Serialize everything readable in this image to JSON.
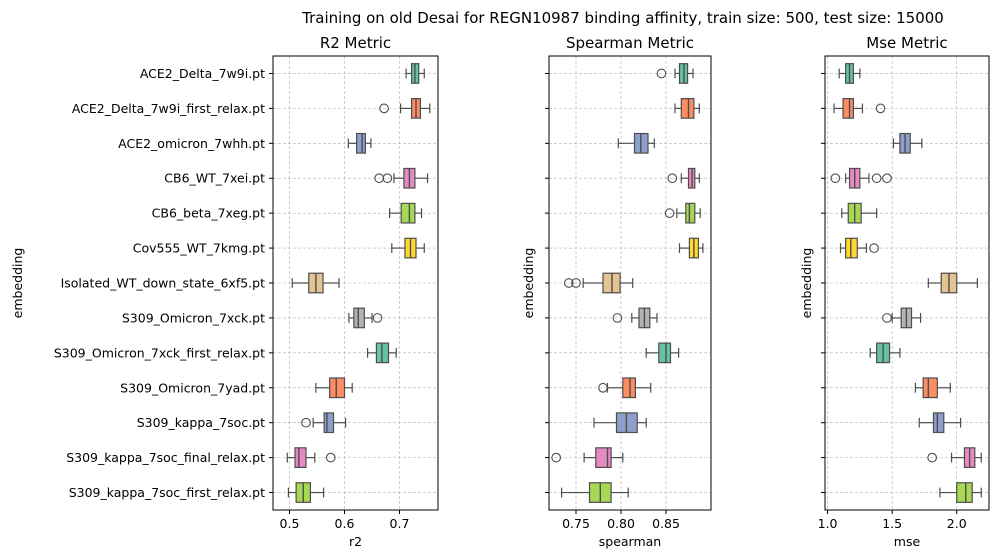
{
  "suptitle": "Training on old Desai for REGN10987 binding affinity, train size: 500, test size: 15000",
  "palette": [
    "#66c2a5",
    "#fc8d62",
    "#8da0cb",
    "#e78ac3",
    "#a6d854",
    "#ffd92f",
    "#e5c494",
    "#b3b3b3",
    "#66c2a5",
    "#fc8d62",
    "#8da0cb",
    "#e78ac3",
    "#a6d854"
  ],
  "chart_data": [
    {
      "type": "box",
      "title": "R2 Metric",
      "xlabel": "r2",
      "ylabel": "embedding",
      "xlim": [
        0.47,
        0.77
      ],
      "xticks": [
        0.5,
        0.6,
        0.7
      ],
      "xtick_labels": [
        "0.5",
        "0.6",
        "0.7"
      ],
      "grid": true,
      "categories": [
        "ACE2_Delta_7w9i.pt",
        "ACE2_Delta_7w9i_first_relax.pt",
        "ACE2_omicron_7whh.pt",
        "CB6_WT_7xei.pt",
        "CB6_beta_7xeg.pt",
        "Cov555_WT_7kmg.pt",
        "Isolated_WT_down_state_6xf5.pt",
        "S309_Omicron_7xck.pt",
        "S309_Omicron_7xck_first_relax.pt",
        "S309_Omicron_7yad.pt",
        "S309_kappa_7soc.pt",
        "S309_kappa_7soc_final_relax.pt",
        "S309_kappa_7soc_first_relax.pt"
      ],
      "boxes": [
        {
          "whislo": 0.712,
          "q1": 0.722,
          "med": 0.728,
          "q3": 0.735,
          "whishi": 0.745,
          "fliers": []
        },
        {
          "whislo": 0.702,
          "q1": 0.722,
          "med": 0.73,
          "q3": 0.738,
          "whishi": 0.755,
          "fliers": [
            0.672
          ]
        },
        {
          "whislo": 0.607,
          "q1": 0.622,
          "med": 0.632,
          "q3": 0.638,
          "whishi": 0.648,
          "fliers": []
        },
        {
          "whislo": 0.69,
          "q1": 0.708,
          "med": 0.718,
          "q3": 0.728,
          "whishi": 0.751,
          "fliers": [
            0.663,
            0.678
          ]
        },
        {
          "whislo": 0.682,
          "q1": 0.703,
          "med": 0.718,
          "q3": 0.728,
          "whishi": 0.74,
          "fliers": []
        },
        {
          "whislo": 0.686,
          "q1": 0.71,
          "med": 0.72,
          "q3": 0.73,
          "whishi": 0.745,
          "fliers": []
        },
        {
          "whislo": 0.505,
          "q1": 0.535,
          "med": 0.548,
          "q3": 0.561,
          "whishi": 0.59,
          "fliers": []
        },
        {
          "whislo": 0.608,
          "q1": 0.617,
          "med": 0.625,
          "q3": 0.636,
          "whishi": 0.65,
          "fliers": [
            0.66
          ]
        },
        {
          "whislo": 0.642,
          "q1": 0.658,
          "med": 0.668,
          "q3": 0.68,
          "whishi": 0.694,
          "fliers": []
        },
        {
          "whislo": 0.548,
          "q1": 0.573,
          "med": 0.585,
          "q3": 0.6,
          "whishi": 0.614,
          "fliers": []
        },
        {
          "whislo": 0.543,
          "q1": 0.563,
          "med": 0.568,
          "q3": 0.58,
          "whishi": 0.602,
          "fliers": [
            0.53
          ]
        },
        {
          "whislo": 0.496,
          "q1": 0.51,
          "med": 0.517,
          "q3": 0.53,
          "whishi": 0.546,
          "fliers": [
            0.575
          ]
        },
        {
          "whislo": 0.498,
          "q1": 0.512,
          "med": 0.525,
          "q3": 0.538,
          "whishi": 0.562,
          "fliers": []
        }
      ]
    },
    {
      "type": "box",
      "title": "Spearman Metric",
      "xlabel": "spearman",
      "ylabel": "embedding",
      "xlim": [
        0.72,
        0.9
      ],
      "xticks": [
        0.75,
        0.8,
        0.85
      ],
      "xtick_labels": [
        "0.75",
        "0.80",
        "0.85"
      ],
      "grid": true,
      "categories": [
        "ACE2_Delta_7w9i.pt",
        "ACE2_Delta_7w9i_first_relax.pt",
        "ACE2_omicron_7whh.pt",
        "CB6_WT_7xei.pt",
        "CB6_beta_7xeg.pt",
        "Cov555_WT_7kmg.pt",
        "Isolated_WT_down_state_6xf5.pt",
        "S309_Omicron_7xck.pt",
        "S309_Omicron_7xck_first_relax.pt",
        "S309_Omicron_7yad.pt",
        "S309_kappa_7soc.pt",
        "S309_kappa_7soc_final_relax.pt",
        "S309_kappa_7soc_first_relax.pt"
      ],
      "boxes": [
        {
          "whislo": 0.86,
          "q1": 0.865,
          "med": 0.87,
          "q3": 0.874,
          "whishi": 0.88,
          "fliers": [
            0.845
          ]
        },
        {
          "whislo": 0.86,
          "q1": 0.867,
          "med": 0.875,
          "q3": 0.881,
          "whishi": 0.887,
          "fliers": []
        },
        {
          "whislo": 0.797,
          "q1": 0.815,
          "med": 0.822,
          "q3": 0.83,
          "whishi": 0.837,
          "fliers": []
        },
        {
          "whislo": 0.867,
          "q1": 0.875,
          "med": 0.879,
          "q3": 0.882,
          "whishi": 0.887,
          "fliers": [
            0.857
          ]
        },
        {
          "whislo": 0.862,
          "q1": 0.872,
          "med": 0.876,
          "q3": 0.882,
          "whishi": 0.888,
          "fliers": [
            0.854
          ]
        },
        {
          "whislo": 0.865,
          "q1": 0.876,
          "med": 0.881,
          "q3": 0.886,
          "whishi": 0.891,
          "fliers": []
        },
        {
          "whislo": 0.758,
          "q1": 0.78,
          "med": 0.79,
          "q3": 0.799,
          "whishi": 0.813,
          "fliers": [
            0.742,
            0.75
          ]
        },
        {
          "whislo": 0.812,
          "q1": 0.82,
          "med": 0.826,
          "q3": 0.832,
          "whishi": 0.84,
          "fliers": [
            0.796
          ]
        },
        {
          "whislo": 0.828,
          "q1": 0.842,
          "med": 0.85,
          "q3": 0.855,
          "whishi": 0.864,
          "fliers": []
        },
        {
          "whislo": 0.785,
          "q1": 0.802,
          "med": 0.81,
          "q3": 0.816,
          "whishi": 0.833,
          "fliers": [
            0.78
          ]
        },
        {
          "whislo": 0.77,
          "q1": 0.795,
          "med": 0.806,
          "q3": 0.818,
          "whishi": 0.828,
          "fliers": []
        },
        {
          "whislo": 0.759,
          "q1": 0.772,
          "med": 0.785,
          "q3": 0.789,
          "whishi": 0.802,
          "fliers": [
            0.728
          ]
        },
        {
          "whislo": 0.734,
          "q1": 0.765,
          "med": 0.777,
          "q3": 0.789,
          "whishi": 0.808,
          "fliers": []
        }
      ]
    },
    {
      "type": "box",
      "title": "Mse Metric",
      "xlabel": "mse",
      "ylabel": "embedding",
      "xlim": [
        0.98,
        2.25
      ],
      "xticks": [
        1.0,
        1.5,
        2.0
      ],
      "xtick_labels": [
        "1.0",
        "1.5",
        "2.0"
      ],
      "grid": true,
      "categories": [
        "ACE2_Delta_7w9i.pt",
        "ACE2_Delta_7w9i_first_relax.pt",
        "ACE2_omicron_7whh.pt",
        "CB6_WT_7xei.pt",
        "CB6_beta_7xeg.pt",
        "Cov555_WT_7kmg.pt",
        "Isolated_WT_down_state_6xf5.pt",
        "S309_Omicron_7xck.pt",
        "S309_Omicron_7xck_first_relax.pt",
        "S309_Omicron_7yad.pt",
        "S309_kappa_7soc.pt",
        "S309_kappa_7soc_final_relax.pt",
        "S309_kappa_7soc_first_relax.pt"
      ],
      "boxes": [
        {
          "whislo": 1.09,
          "q1": 1.14,
          "med": 1.17,
          "q3": 1.2,
          "whishi": 1.25,
          "fliers": []
        },
        {
          "whislo": 1.05,
          "q1": 1.12,
          "med": 1.17,
          "q3": 1.2,
          "whishi": 1.27,
          "fliers": [
            1.41
          ]
        },
        {
          "whislo": 1.51,
          "q1": 1.56,
          "med": 1.6,
          "q3": 1.64,
          "whishi": 1.73,
          "fliers": []
        },
        {
          "whislo": 1.14,
          "q1": 1.17,
          "med": 1.21,
          "q3": 1.25,
          "whishi": 1.32,
          "fliers": [
            1.06,
            1.38,
            1.46
          ]
        },
        {
          "whislo": 1.11,
          "q1": 1.16,
          "med": 1.21,
          "q3": 1.26,
          "whishi": 1.38,
          "fliers": []
        },
        {
          "whislo": 1.1,
          "q1": 1.14,
          "med": 1.18,
          "q3": 1.23,
          "whishi": 1.3,
          "fliers": [
            1.36
          ]
        },
        {
          "whislo": 1.78,
          "q1": 1.88,
          "med": 1.94,
          "q3": 2.0,
          "whishi": 2.16,
          "fliers": []
        },
        {
          "whislo": 1.5,
          "q1": 1.57,
          "med": 1.61,
          "q3": 1.65,
          "whishi": 1.72,
          "fliers": [
            1.46
          ]
        },
        {
          "whislo": 1.33,
          "q1": 1.38,
          "med": 1.43,
          "q3": 1.48,
          "whishi": 1.56,
          "fliers": []
        },
        {
          "whislo": 1.68,
          "q1": 1.74,
          "med": 1.78,
          "q3": 1.85,
          "whishi": 1.95,
          "fliers": []
        },
        {
          "whislo": 1.71,
          "q1": 1.82,
          "med": 1.85,
          "q3": 1.9,
          "whishi": 2.03,
          "fliers": []
        },
        {
          "whislo": 1.96,
          "q1": 2.06,
          "med": 2.1,
          "q3": 2.14,
          "whishi": 2.19,
          "fliers": [
            1.81
          ]
        },
        {
          "whislo": 1.87,
          "q1": 2.0,
          "med": 2.07,
          "q3": 2.12,
          "whishi": 2.19,
          "fliers": []
        }
      ]
    }
  ]
}
